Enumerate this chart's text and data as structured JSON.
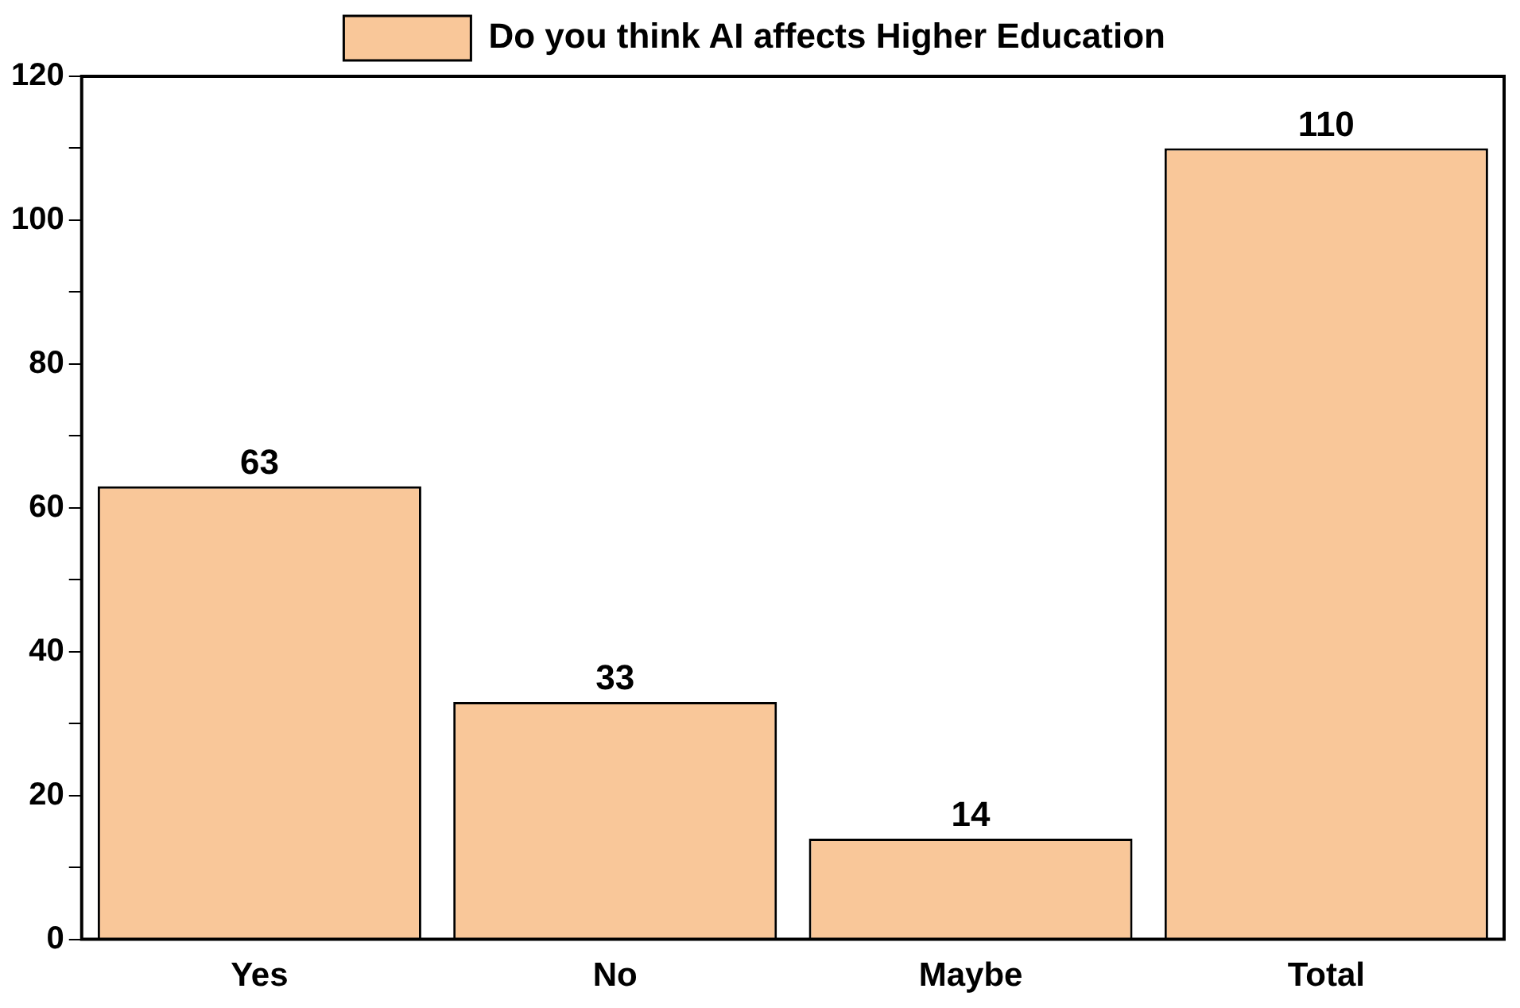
{
  "chart_data": {
    "type": "bar",
    "categories": [
      "Yes",
      "No",
      "Maybe",
      "Total"
    ],
    "series": [
      {
        "name": "Do you think AI affects Higher Education",
        "color": "#f9c799",
        "values": [
          63,
          33,
          14,
          110
        ]
      }
    ],
    "ylim": [
      0,
      120
    ],
    "yticks": [
      0,
      {
        "value": 10,
        "label": null
      },
      20,
      {
        "value": 30,
        "label": null
      },
      40,
      {
        "value": 50,
        "label": null
      },
      60,
      {
        "value": 70,
        "label": null
      },
      80,
      {
        "value": 90,
        "label": null
      },
      100,
      {
        "value": 110,
        "label": null
      },
      120
    ],
    "grid": false,
    "legend": "top",
    "data_labels": true
  }
}
